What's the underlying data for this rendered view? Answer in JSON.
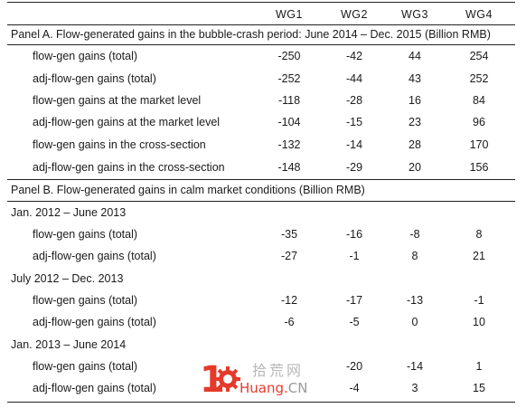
{
  "columns": [
    "WG1",
    "WG2",
    "WG3",
    "WG4"
  ],
  "panelA": {
    "title": "Panel A. Flow-generated gains in the bubble-crash period: June 2014 – Dec. 2015 (Billion RMB)",
    "rows": [
      {
        "label": "flow-gen gains (total)",
        "values": [
          "-250",
          "-42",
          "44",
          "254"
        ]
      },
      {
        "label": "adj-flow-gen gains (total)",
        "values": [
          "-252",
          "-44",
          "43",
          "252"
        ]
      },
      {
        "label": "flow-gen gains at the market level",
        "values": [
          "-118",
          "-28",
          "16",
          "84"
        ]
      },
      {
        "label": "adj-flow-gen gains at the market level",
        "values": [
          "-104",
          "-15",
          "23",
          "96"
        ]
      },
      {
        "label": "flow-gen gains in the cross-section",
        "values": [
          "-132",
          "-14",
          "28",
          "170"
        ]
      },
      {
        "label": "adj-flow-gen gains in the cross-section",
        "values": [
          "-148",
          "-29",
          "20",
          "156"
        ]
      }
    ]
  },
  "panelB": {
    "title": "Panel B. Flow-generated gains in calm market conditions (Billion RMB)",
    "periods": [
      {
        "label": "Jan. 2012 – June 2013",
        "rows": [
          {
            "label": "flow-gen gains (total)",
            "values": [
              "-35",
              "-16",
              "-8",
              "8"
            ]
          },
          {
            "label": "adj-flow-gen gains (total)",
            "values": [
              "-27",
              "-1",
              "8",
              "21"
            ]
          }
        ]
      },
      {
        "label": "July 2012 – Dec. 2013",
        "rows": [
          {
            "label": "flow-gen gains (total)",
            "values": [
              "-12",
              "-17",
              "-13",
              "-1"
            ]
          },
          {
            "label": "adj-flow-gen gains (total)",
            "values": [
              "-6",
              "-5",
              "0",
              "10"
            ]
          }
        ]
      },
      {
        "label": "Jan. 2013 – June 2014",
        "rows": [
          {
            "label": "flow-gen gains (total)",
            "values": [
              "",
              "-20",
              "-14",
              "1"
            ]
          },
          {
            "label": "adj-flow-gen gains (total)",
            "values": [
              "",
              "-4",
              "3",
              "15"
            ]
          }
        ]
      }
    ]
  },
  "watermark": {
    "number": "10",
    "chinese": "拾荒网",
    "latin": "Huang.",
    "suffix": "CN",
    "colors": {
      "red": "#e53a2b",
      "gray": "#b8b8b8"
    }
  }
}
